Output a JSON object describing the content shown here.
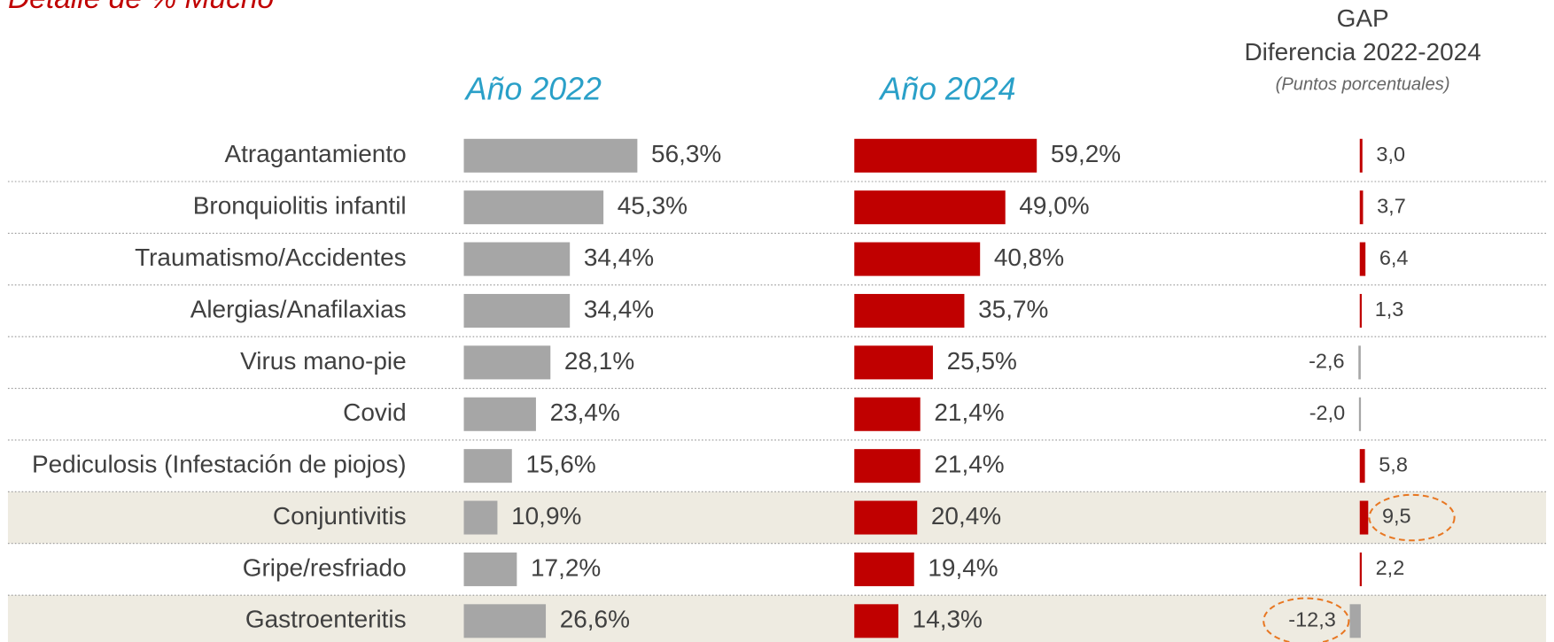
{
  "chart_data": {
    "type": "bar",
    "orientation": "horizontal",
    "title": "Detalle de % Mucho",
    "categories": [
      "Atragantamiento",
      "Bronquiolitis infantil",
      "Traumatismo/Accidentes",
      "Alergias/Anafilaxias",
      "Virus mano-pie",
      "Covid",
      "Pediculosis (Infestación de piojos)",
      "Conjuntivitis",
      "Gripe/resfriado",
      "Gastroenteritis"
    ],
    "series": [
      {
        "name": "Año 2022",
        "color": "#a6a6a6",
        "xlim": [
          0,
          100
        ],
        "values": [
          56.3,
          45.3,
          34.4,
          34.4,
          28.1,
          23.4,
          15.6,
          10.9,
          17.2,
          26.6
        ],
        "value_labels": [
          "56,3%",
          "45,3%",
          "34,4%",
          "34,4%",
          "28,1%",
          "23,4%",
          "15,6%",
          "10,9%",
          "17,2%",
          "26,6%"
        ]
      },
      {
        "name": "Año 2024",
        "color": "#c00000",
        "xlim": [
          0,
          100
        ],
        "values": [
          59.2,
          49.0,
          40.8,
          35.7,
          25.5,
          21.4,
          21.4,
          20.4,
          19.4,
          14.3
        ],
        "value_labels": [
          "59,2%",
          "49,0%",
          "40,8%",
          "35,7%",
          "25,5%",
          "21,4%",
          "21,4%",
          "20,4%",
          "19,4%",
          "14,3%"
        ]
      }
    ],
    "gap": {
      "title": "GAP",
      "subtitle": "Diferencia 2022-2024",
      "note": "(Puntos porcentuales)",
      "color": "#c00000",
      "negative_color": "#a6a6a6",
      "xlim": [
        -15,
        15
      ],
      "values": [
        3.0,
        3.7,
        6.4,
        1.3,
        -2.6,
        -2.0,
        5.8,
        9.5,
        2.2,
        -12.3
      ],
      "value_labels": [
        "3,0",
        "3,7",
        "6,4",
        "1,3",
        "-2,6",
        "-2,0",
        "5,8",
        "9,5",
        "2,2",
        "-12,3"
      ]
    },
    "highlight_rows": [
      7,
      9
    ],
    "highlight_color": "#eeebe1",
    "circle_color": "#e87722"
  }
}
